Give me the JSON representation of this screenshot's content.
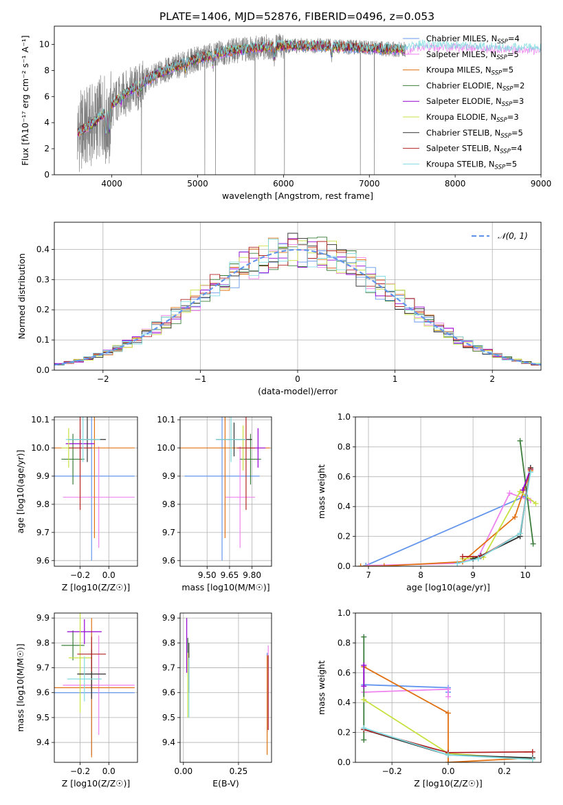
{
  "figure_title": "PLATE=1406, MJD=52876, FIBERID=0496, z=0.053",
  "legend_series": [
    {
      "name": "Chabrier MILES, N",
      "sub": "SSP",
      "tail": "=4",
      "color": "#6495ed"
    },
    {
      "name": "Salpeter MILES, N",
      "sub": "SSP",
      "tail": "=5",
      "color": "#ee82ee"
    },
    {
      "name": "Kroupa MILES, N",
      "sub": "SSP",
      "tail": "=5",
      "color": "#e07010"
    },
    {
      "name": "Chabrier ELODIE, N",
      "sub": "SSP",
      "tail": "=2",
      "color": "#3a7d3a"
    },
    {
      "name": "Salpeter ELODIE, N",
      "sub": "SSP",
      "tail": "=3",
      "color": "#9400d3"
    },
    {
      "name": "Kroupa ELODIE, N",
      "sub": "SSP",
      "tail": "=3",
      "color": "#c8e040"
    },
    {
      "name": "Chabrier STELIB, N",
      "sub": "SSP",
      "tail": "=5",
      "color": "#303030"
    },
    {
      "name": "Salpeter STELIB, N",
      "sub": "SSP",
      "tail": "=4",
      "color": "#b22222"
    },
    {
      "name": "Kroupa STELIB, N",
      "sub": "SSP",
      "tail": "=5",
      "color": "#7fdbe0"
    }
  ],
  "chart_data": [
    {
      "id": "spectrum",
      "type": "line",
      "xlabel": "wavelength [Angstrom, rest frame]",
      "ylabel": "Flux [fλ10⁻¹⁷ erg cm⁻² s⁻¹ A⁻¹]",
      "xlim": [
        3330,
        9000
      ],
      "ylim": [
        0,
        11.4
      ],
      "xticks": [
        4000,
        5000,
        6000,
        7000,
        8000,
        9000
      ],
      "yticks": [
        0,
        2,
        4,
        6,
        8,
        10
      ],
      "data_color": "#808080",
      "model_color": "#7fdbe0",
      "data_range": [
        3600,
        7420
      ],
      "continuum": [
        [
          3600,
          3.2
        ],
        [
          3800,
          4.0
        ],
        [
          3950,
          5.0
        ],
        [
          4100,
          6.0
        ],
        [
          4300,
          6.8
        ],
        [
          4500,
          7.6
        ],
        [
          4700,
          8.2
        ],
        [
          5000,
          8.9
        ],
        [
          5300,
          9.4
        ],
        [
          5600,
          9.7
        ],
        [
          6000,
          9.9
        ],
        [
          6500,
          9.9
        ],
        [
          7000,
          9.7
        ],
        [
          7420,
          9.6
        ],
        [
          7600,
          9.9
        ],
        [
          8000,
          9.8
        ],
        [
          8500,
          9.7
        ],
        [
          9000,
          9.6
        ]
      ],
      "absorption": [
        [
          3934,
          3.0
        ],
        [
          3969,
          3.2
        ],
        [
          4102,
          5.5
        ],
        [
          4304,
          6.3
        ],
        [
          4341,
          6.6
        ],
        [
          4861,
          8.1
        ],
        [
          5175,
          8.5
        ],
        [
          5893,
          9.0
        ],
        [
          6563,
          9.2
        ]
      ]
    },
    {
      "id": "residuals",
      "type": "histogram",
      "xlabel": "(data-model)/error",
      "ylabel": "Normed distribution",
      "xlim": [
        -2.5,
        2.5
      ],
      "ylim": [
        0,
        0.49
      ],
      "xticks": [
        -2,
        -1,
        0,
        1,
        2
      ],
      "yticks": [
        0.0,
        0.1,
        0.2,
        0.3,
        0.4
      ],
      "bin_width": 0.1,
      "reference": {
        "name": "N(0,1)",
        "color": "#6495ed"
      }
    },
    {
      "id": "z_age",
      "type": "scatter",
      "xlabel": "Z [log10(Z/Z☉)]",
      "ylabel": "age  [log10(age/yr)]",
      "xlim": [
        -0.38,
        0.2
      ],
      "ylim": [
        9.58,
        10.11
      ],
      "xticks": [
        -0.2,
        0.0
      ],
      "yticks": [
        9.6,
        9.7,
        9.8,
        9.9,
        10.0,
        10.1
      ],
      "points": [
        {
          "x": -0.12,
          "y": 9.9,
          "xerr": 0.3,
          "yerr": 0.3,
          "color": "#6495ed"
        },
        {
          "x": -0.07,
          "y": 9.825,
          "xerr": 0.25,
          "yerr": 0.18,
          "color": "#ee82ee"
        },
        {
          "x": -0.1,
          "y": 10.0,
          "xerr": 0.28,
          "yerr": 0.32,
          "color": "#e07010"
        },
        {
          "x": -0.25,
          "y": 9.96,
          "xerr": 0.08,
          "yerr": 0.09,
          "color": "#3a7d3a"
        },
        {
          "x": -0.2,
          "y": 10.015,
          "xerr": 0.1,
          "yerr": 0.05,
          "color": "#9400d3"
        },
        {
          "x": -0.28,
          "y": 10.0,
          "xerr": 0.05,
          "yerr": 0.07,
          "color": "#c8e040"
        },
        {
          "x": -0.15,
          "y": 10.03,
          "xerr": 0.13,
          "yerr": 0.08,
          "color": "#303030"
        },
        {
          "x": -0.2,
          "y": 10.0,
          "xerr": 0.08,
          "yerr": 0.22,
          "color": "#b22222"
        },
        {
          "x": -0.18,
          "y": 10.03,
          "xerr": 0.12,
          "yerr": 0.08,
          "color": "#7fdbe0"
        }
      ]
    },
    {
      "id": "mass_age",
      "type": "scatter",
      "xlabel": "mass [log10(M/M☉)]",
      "ylabel": "",
      "xlim": [
        9.32,
        9.93
      ],
      "ylim": [
        9.58,
        10.11
      ],
      "xticks": [
        9.5,
        9.65,
        9.8
      ],
      "xticklabels": [
        "9.50",
        "9.65",
        "9.80"
      ],
      "yticks": [
        9.6,
        9.7,
        9.8,
        9.9,
        10.0,
        10.1
      ],
      "points": [
        {
          "x": 9.6,
          "y": 9.9,
          "xerr": 0.25,
          "yerr": 0.3,
          "color": "#6495ed"
        },
        {
          "x": 9.72,
          "y": 9.825,
          "xerr": 0.1,
          "yerr": 0.18,
          "color": "#ee82ee"
        },
        {
          "x": 9.62,
          "y": 10.0,
          "xerr": 0.3,
          "yerr": 0.32,
          "color": "#e07010"
        },
        {
          "x": 9.79,
          "y": 9.96,
          "xerr": 0.07,
          "yerr": 0.09,
          "color": "#3a7d3a"
        },
        {
          "x": 9.84,
          "y": 10.0,
          "xerr": 0.05,
          "yerr": 0.07,
          "color": "#9400d3"
        },
        {
          "x": 9.74,
          "y": 10.0,
          "xerr": 0.04,
          "yerr": 0.08,
          "color": "#c8e040"
        },
        {
          "x": 9.68,
          "y": 10.03,
          "xerr": 0.12,
          "yerr": 0.06,
          "color": "#303030"
        },
        {
          "x": 9.76,
          "y": 10.0,
          "xerr": 0.06,
          "yerr": 0.22,
          "color": "#b22222"
        },
        {
          "x": 9.66,
          "y": 10.03,
          "xerr": 0.1,
          "yerr": 0.08,
          "color": "#7fdbe0"
        }
      ]
    },
    {
      "id": "age_weight",
      "type": "line",
      "xlabel": "age  [log10(age/yr)]",
      "ylabel": "mass weight",
      "xlim": [
        6.75,
        10.3
      ],
      "ylim": [
        0,
        1.0
      ],
      "xticks": [
        7,
        8,
        9,
        10
      ],
      "yticks": [
        0.0,
        0.2,
        0.4,
        0.6,
        0.8,
        1.0
      ],
      "series": [
        {
          "color": "#6495ed",
          "x": [
            6.95,
            10.0
          ],
          "y": [
            0.005,
            0.47
          ]
        },
        {
          "color": "#ee82ee",
          "x": [
            7.0,
            8.7,
            9.1,
            9.7,
            10.1
          ],
          "y": [
            0.005,
            0.02,
            0.06,
            0.49,
            0.44
          ]
        },
        {
          "color": "#e07010",
          "x": [
            6.85,
            7.3,
            8.8,
            9.8,
            10.1
          ],
          "y": [
            0.0,
            0.002,
            0.03,
            0.33,
            0.64
          ]
        },
        {
          "color": "#3a7d3a",
          "x": [
            9.9,
            10.15
          ],
          "y": [
            0.84,
            0.15
          ]
        },
        {
          "color": "#9400d3",
          "x": [
            9.95,
            10.1
          ],
          "y": [
            0.51,
            0.65
          ]
        },
        {
          "color": "#c8e040",
          "x": [
            8.8,
            9.2,
            9.9,
            10.2
          ],
          "y": [
            0.05,
            0.06,
            0.5,
            0.42
          ]
        },
        {
          "color": "#303030",
          "x": [
            9.0,
            9.15,
            9.9,
            10.1
          ],
          "y": [
            0.05,
            0.07,
            0.2,
            0.66
          ]
        },
        {
          "color": "#b22222",
          "x": [
            8.8,
            9.15,
            9.9,
            10.1
          ],
          "y": [
            0.065,
            0.065,
            0.22,
            0.65
          ]
        },
        {
          "color": "#7fdbe0",
          "x": [
            8.7,
            9.1,
            9.9,
            10.1
          ],
          "y": [
            0.02,
            0.05,
            0.22,
            0.63
          ]
        }
      ]
    },
    {
      "id": "z_mass",
      "type": "scatter",
      "xlabel": "Z [log10(Z/Z☉)]",
      "ylabel": "mass [log10(M/M☉)]",
      "xlim": [
        -0.38,
        0.2
      ],
      "ylim": [
        9.32,
        9.92
      ],
      "xticks": [
        -0.2,
        0.0
      ],
      "yticks": [
        9.4,
        9.5,
        9.6,
        9.7,
        9.8,
        9.9
      ],
      "points": [
        {
          "x": -0.12,
          "y": 9.6,
          "xerr": 0.3,
          "yerr": 0.25,
          "color": "#6495ed"
        },
        {
          "x": -0.07,
          "y": 9.63,
          "xerr": 0.25,
          "yerr": 0.2,
          "color": "#ee82ee"
        },
        {
          "x": -0.12,
          "y": 9.62,
          "xerr": 0.3,
          "yerr": 0.28,
          "color": "#e07010"
        },
        {
          "x": -0.25,
          "y": 9.79,
          "xerr": 0.08,
          "yerr": 0.06,
          "color": "#3a7d3a"
        },
        {
          "x": -0.17,
          "y": 9.845,
          "xerr": 0.12,
          "yerr": 0.05,
          "color": "#9400d3"
        },
        {
          "x": -0.2,
          "y": 9.74,
          "xerr": 0.08,
          "yerr": 0.22,
          "color": "#c8e040"
        },
        {
          "x": -0.12,
          "y": 9.675,
          "xerr": 0.1,
          "yerr": 0.1,
          "color": "#303030"
        },
        {
          "x": -0.12,
          "y": 9.755,
          "xerr": 0.1,
          "yerr": 0.07,
          "color": "#b22222"
        },
        {
          "x": -0.17,
          "y": 9.655,
          "xerr": 0.12,
          "yerr": 0.09,
          "color": "#7fdbe0"
        }
      ]
    },
    {
      "id": "ebv_mass",
      "type": "scatter",
      "xlabel": "E(B-V)",
      "ylabel": "",
      "xlim": [
        -0.015,
        0.4
      ],
      "ylim": [
        9.32,
        9.92
      ],
      "xticks": [
        0.0,
        0.25
      ],
      "xticklabels": [
        "0.00",
        "0.25"
      ],
      "yticks": [
        9.4,
        9.5,
        9.6,
        9.7,
        9.8,
        9.9
      ],
      "points": [
        {
          "x": 0.38,
          "y": 9.6,
          "xerr": 0,
          "yerr": 0.16,
          "color": "#6495ed"
        },
        {
          "x": 0.385,
          "y": 9.62,
          "xerr": 0,
          "yerr": 0.17,
          "color": "#ee82ee"
        },
        {
          "x": 0.38,
          "y": 9.55,
          "xerr": 0,
          "yerr": 0.2,
          "color": "#e07010"
        },
        {
          "x": 0.02,
          "y": 9.79,
          "xerr": 0,
          "yerr": 0.03,
          "color": "#3a7d3a"
        },
        {
          "x": 0.015,
          "y": 9.79,
          "xerr": 0,
          "yerr": 0.11,
          "color": "#9400d3"
        },
        {
          "x": 0.02,
          "y": 9.63,
          "xerr": 0,
          "yerr": 0.13,
          "color": "#c8e040"
        },
        {
          "x": 0.025,
          "y": 9.7,
          "xerr": 0,
          "yerr": 0.1,
          "color": "#303030"
        },
        {
          "x": 0.385,
          "y": 9.6,
          "xerr": 0,
          "yerr": 0.15,
          "color": "#b22222"
        },
        {
          "x": 0.025,
          "y": 9.62,
          "xerr": 0,
          "yerr": 0.12,
          "color": "#7fdbe0"
        }
      ]
    },
    {
      "id": "z_weight",
      "type": "line",
      "xlabel": "Z [log10(Z/Z☉)]",
      "ylabel": "mass weight",
      "xlim": [
        -0.33,
        0.33
      ],
      "ylim": [
        0,
        1.0
      ],
      "xticks": [
        -0.2,
        0.0,
        0.2
      ],
      "yticks": [
        0.0,
        0.2,
        0.4,
        0.6,
        0.8,
        1.0
      ],
      "series": [
        {
          "color": "#6495ed",
          "x": [
            -0.3,
            0.0,
            0.0
          ],
          "y": [
            0.52,
            0.5,
            0.47
          ]
        },
        {
          "color": "#ee82ee",
          "x": [
            -0.3,
            0.0,
            0.0
          ],
          "y": [
            0.47,
            0.49,
            0.44
          ]
        },
        {
          "color": "#e07010",
          "x": [
            -0.3,
            0.0,
            0.0,
            0.3
          ],
          "y": [
            0.64,
            0.33,
            0.0,
            0.03
          ]
        },
        {
          "color": "#3a7d3a",
          "x": [
            -0.3,
            -0.3
          ],
          "y": [
            0.84,
            0.15
          ]
        },
        {
          "color": "#9400d3",
          "x": [
            -0.3,
            -0.3
          ],
          "y": [
            0.65,
            0.51
          ]
        },
        {
          "color": "#c8e040",
          "x": [
            -0.3,
            0.0,
            0.3
          ],
          "y": [
            0.42,
            0.06,
            0.02
          ]
        },
        {
          "color": "#303030",
          "x": [
            -0.3,
            0.0,
            0.3
          ],
          "y": [
            0.22,
            0.05,
            0.03
          ]
        },
        {
          "color": "#b22222",
          "x": [
            -0.3,
            0.0,
            0.3
          ],
          "y": [
            0.22,
            0.065,
            0.07
          ]
        },
        {
          "color": "#7fdbe0",
          "x": [
            -0.3,
            0.0,
            0.3
          ],
          "y": [
            0.23,
            0.05,
            0.02
          ]
        }
      ]
    }
  ]
}
